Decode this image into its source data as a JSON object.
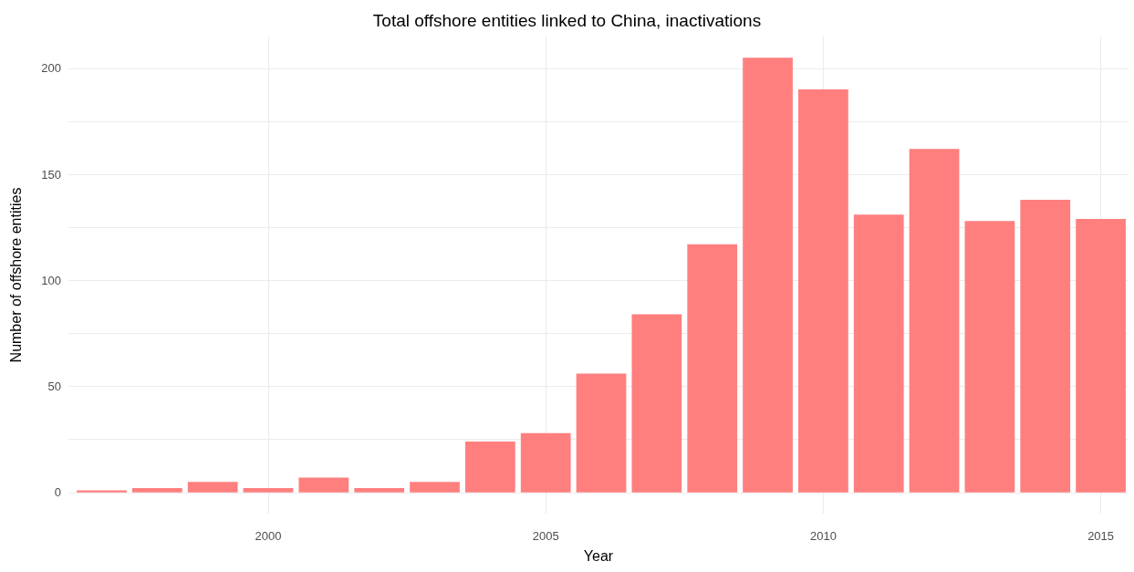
{
  "chart_data": {
    "type": "bar",
    "title": "Total offshore entities linked to China, inactivations",
    "xlabel": "Year",
    "ylabel": "Number of offshore entities",
    "x": [
      1997,
      1998,
      1999,
      2000,
      2001,
      2002,
      2003,
      2004,
      2005,
      2006,
      2007,
      2008,
      2009,
      2010,
      2011,
      2012,
      2013,
      2014,
      2015
    ],
    "values": [
      1,
      2,
      5,
      2,
      7,
      2,
      5,
      24,
      28,
      56,
      84,
      117,
      205,
      190,
      131,
      162,
      128,
      138,
      129
    ],
    "color": "#ff7f7f",
    "xlim": [
      1996.4,
      2015.5
    ],
    "xticks": [
      2000,
      2005,
      2010,
      2015
    ],
    "ylim": [
      -10,
      215
    ],
    "yticks": [
      0,
      {
        "value": 25,
        "label": null
      },
      50,
      {
        "value": 75,
        "label": null
      },
      100,
      {
        "value": 125,
        "label": null
      },
      150,
      {
        "value": 175,
        "label": null
      },
      200
    ],
    "grid": true
  }
}
